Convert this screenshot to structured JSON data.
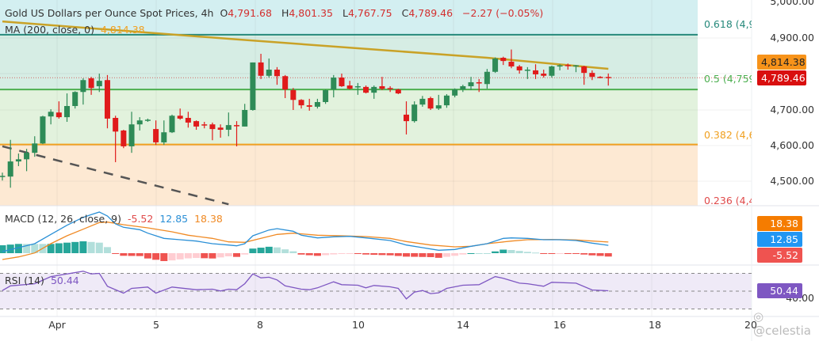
{
  "header": {
    "title": "Gold US Dollars per Ounce Spot Prices, 4h",
    "o_label": "O",
    "o_value": "4,791.68",
    "h_label": "H",
    "h_value": "4,801.35",
    "l_label": "L",
    "l_value": "4,767.75",
    "c_label": "C",
    "c_value": "4,789.46",
    "change": "−2.27 (−0.05%)"
  },
  "ma_legend": {
    "label": "MA (200, close, 0)",
    "value": "4,814.38"
  },
  "macd_legend": {
    "label": "MACD (12, 26, close, 9)",
    "hist": "-5.52",
    "macd": "12.85",
    "signal": "18.38"
  },
  "rsi_legend": {
    "label": "RSI (14)",
    "value": "50.44"
  },
  "price_axis": [
    "5,000.00",
    "4,900.00",
    "4,700.00",
    "4,600.00",
    "4,500.00"
  ],
  "price_badges": {
    "ma": "4,814.38",
    "last": "4,789.46"
  },
  "macd_badges": {
    "signal": "18.38",
    "macd": "12.85",
    "hist": "-5.52"
  },
  "rsi_axis": {
    "badge": "50.44",
    "label": "40.00"
  },
  "fib_levels": [
    {
      "ratio": 0.618,
      "price": 4909,
      "label": "0.618 (4,9",
      "color": "#26897b"
    },
    {
      "ratio": 0.5,
      "price": 4757,
      "label": "0.5 (4,759",
      "color": "#4caf50"
    },
    {
      "ratio": 0.382,
      "price": 4604,
      "label": "0.382 (4,6(",
      "color": "#f0a020"
    },
    {
      "ratio": 0.236,
      "price": 4440,
      "label": "0.236 (4,4",
      "color": "#e04a4a"
    }
  ],
  "dates": [
    "Apr",
    "5",
    "8",
    "10",
    "14",
    "16",
    "18",
    "20"
  ],
  "watermark": "@celestia",
  "colors": {
    "up": "#2e8b57",
    "down": "#e01b1b",
    "ma": "#c9a227",
    "macd": "#2a8fd6",
    "signal": "#f08a24",
    "rsi": "#7e57c2"
  },
  "chart_data": {
    "type": "candlestick",
    "timeframe": "4h",
    "ohlc": [
      [
        4515,
        4526,
        4504,
        4517
      ],
      [
        4515,
        4617,
        4484,
        4557
      ],
      [
        4557,
        4579,
        4544,
        4563
      ],
      [
        4563,
        4592,
        4530,
        4581
      ],
      [
        4581,
        4627,
        4570,
        4607
      ],
      [
        4607,
        4684,
        4605,
        4682
      ],
      [
        4682,
        4702,
        4660,
        4695
      ],
      [
        4693,
        4724,
        4676,
        4680
      ],
      [
        4680,
        4746,
        4667,
        4711
      ],
      [
        4711,
        4752,
        4704,
        4750
      ],
      [
        4750,
        4788,
        4715,
        4783
      ],
      [
        4788,
        4792,
        4742,
        4761
      ],
      [
        4766,
        4801,
        4750,
        4781
      ],
      [
        4783,
        4797,
        4649,
        4676
      ],
      [
        4678,
        4684,
        4555,
        4640
      ],
      [
        4643,
        4645,
        4594,
        4599
      ],
      [
        4599,
        4695,
        4581,
        4660
      ],
      [
        4660,
        4680,
        4643,
        4671
      ],
      [
        4671,
        4676,
        4667,
        4673
      ],
      [
        4647,
        4671,
        4603,
        4610
      ],
      [
        4610,
        4671,
        4603,
        4638
      ],
      [
        4638,
        4687,
        4636,
        4684
      ],
      [
        4684,
        4704,
        4673,
        4676
      ],
      [
        4678,
        4695,
        4651,
        4665
      ],
      [
        4669,
        4671,
        4645,
        4654
      ],
      [
        4660,
        4667,
        4649,
        4658
      ],
      [
        4660,
        4665,
        4616,
        4647
      ],
      [
        4651,
        4660,
        4623,
        4645
      ],
      [
        4645,
        4693,
        4627,
        4658
      ],
      [
        4658,
        4669,
        4599,
        4656
      ],
      [
        4654,
        4717,
        4654,
        4700
      ],
      [
        4700,
        4832,
        4698,
        4832
      ],
      [
        4832,
        4856,
        4786,
        4795
      ],
      [
        4795,
        4843,
        4790,
        4812
      ],
      [
        4812,
        4819,
        4770,
        4794
      ],
      [
        4794,
        4797,
        4733,
        4757
      ],
      [
        4755,
        4761,
        4700,
        4728
      ],
      [
        4728,
        4730,
        4704,
        4713
      ],
      [
        4713,
        4731,
        4698,
        4709
      ],
      [
        4709,
        4731,
        4704,
        4722
      ],
      [
        4722,
        4757,
        4717,
        4755
      ],
      [
        4757,
        4797,
        4735,
        4790
      ],
      [
        4790,
        4801,
        4764,
        4766
      ],
      [
        4768,
        4781,
        4757,
        4759
      ],
      [
        4764,
        4775,
        4742,
        4766
      ],
      [
        4764,
        4768,
        4746,
        4748
      ],
      [
        4748,
        4768,
        4731,
        4764
      ],
      [
        4766,
        4792,
        4755,
        4759
      ],
      [
        4761,
        4766,
        4750,
        4759
      ],
      [
        4757,
        4759,
        4744,
        4746
      ],
      [
        4687,
        4724,
        4632,
        4669
      ],
      [
        4669,
        4724,
        4665,
        4715
      ],
      [
        4715,
        4739,
        4709,
        4731
      ],
      [
        4733,
        4737,
        4700,
        4704
      ],
      [
        4704,
        4742,
        4700,
        4713
      ],
      [
        4713,
        4744,
        4706,
        4740
      ],
      [
        4740,
        4760,
        4735,
        4757
      ],
      [
        4757,
        4770,
        4750,
        4766
      ],
      [
        4766,
        4792,
        4755,
        4777
      ],
      [
        4777,
        4786,
        4750,
        4775
      ],
      [
        4772,
        4814,
        4759,
        4806
      ],
      [
        4806,
        4846,
        4803,
        4843
      ],
      [
        4845,
        4848,
        4825,
        4836
      ],
      [
        4834,
        4868,
        4816,
        4821
      ],
      [
        4821,
        4825,
        4801,
        4810
      ],
      [
        4811,
        4819,
        4786,
        4812
      ],
      [
        4810,
        4827,
        4786,
        4799
      ],
      [
        4801,
        4812,
        4790,
        4795
      ],
      [
        4795,
        4823,
        4790,
        4821
      ],
      [
        4823,
        4827,
        4810,
        4824
      ],
      [
        4825,
        4829,
        4812,
        4823
      ],
      [
        4823,
        4825,
        4805,
        4824
      ],
      [
        4821,
        4823,
        4770,
        4803
      ],
      [
        4803,
        4810,
        4783,
        4792
      ],
      [
        4792,
        4794,
        4788,
        4791
      ],
      [
        4791.68,
        4801.35,
        4767.75,
        4789.46
      ]
    ],
    "ma200": [
      [
        0,
        4946
      ],
      [
        29,
        4896
      ],
      [
        60,
        4845
      ],
      [
        75,
        4814.38
      ]
    ],
    "trendline": [
      [
        0,
        4599
      ],
      [
        28,
        4438
      ]
    ],
    "last_price": 4789.46,
    "price_range": [
      4460,
      5005
    ],
    "macd": {
      "macd": [
        [
          0,
          2.6
        ],
        [
          2,
          9.1
        ],
        [
          4,
          15.6
        ],
        [
          6,
          30.8
        ],
        [
          8,
          45.9
        ],
        [
          10,
          58.9
        ],
        [
          11,
          63.3
        ],
        [
          12,
          67.6
        ],
        [
          13,
          61.1
        ],
        [
          14,
          48.1
        ],
        [
          15,
          42.5
        ],
        [
          17,
          38.6
        ],
        [
          18,
          32.9
        ],
        [
          20,
          24.3
        ],
        [
          22,
          22.1
        ],
        [
          24,
          19.9
        ],
        [
          26,
          15.6
        ],
        [
          28,
          13.4
        ],
        [
          29,
          12.1
        ],
        [
          30,
          15.6
        ],
        [
          31,
          28.6
        ],
        [
          33,
          38.1
        ],
        [
          34,
          40.3
        ],
        [
          36,
          36
        ],
        [
          37,
          29.5
        ],
        [
          39,
          25.1
        ],
        [
          41,
          26.9
        ],
        [
          43,
          27.7
        ],
        [
          45,
          25.1
        ],
        [
          48,
          20.8
        ],
        [
          50,
          13.4
        ],
        [
          52,
          9.1
        ],
        [
          54,
          4.8
        ],
        [
          56,
          6.1
        ],
        [
          58,
          11.3
        ],
        [
          60,
          15.6
        ],
        [
          62,
          24.3
        ],
        [
          63,
          25.1
        ],
        [
          65,
          24.3
        ],
        [
          67,
          22.1
        ],
        [
          69,
          22.1
        ],
        [
          71,
          20.8
        ],
        [
          73,
          16.5
        ],
        [
          75,
          12.85
        ]
      ],
      "signal": [
        [
          0,
          -10.4
        ],
        [
          2,
          -6.1
        ],
        [
          4,
          0.4
        ],
        [
          6,
          15.6
        ],
        [
          8,
          28.6
        ],
        [
          10,
          39.4
        ],
        [
          12,
          50.3
        ],
        [
          13,
          51.1
        ],
        [
          15,
          46.8
        ],
        [
          18,
          41.6
        ],
        [
          21,
          35.1
        ],
        [
          23,
          29.5
        ],
        [
          26,
          24.3
        ],
        [
          28,
          18.6
        ],
        [
          30,
          17.8
        ],
        [
          32,
          24.3
        ],
        [
          34,
          30.8
        ],
        [
          36,
          32.9
        ],
        [
          39,
          29.5
        ],
        [
          42,
          28.6
        ],
        [
          45,
          27.3
        ],
        [
          48,
          24.3
        ],
        [
          50,
          19.1
        ],
        [
          53,
          13.4
        ],
        [
          56,
          10.4
        ],
        [
          58,
          11.3
        ],
        [
          60,
          15.6
        ],
        [
          63,
          19.9
        ],
        [
          65,
          22.1
        ],
        [
          68,
          22.5
        ],
        [
          71,
          21.7
        ],
        [
          75,
          18.38
        ]
      ]
    },
    "rsi": {
      "levels": [
        70,
        50,
        30
      ],
      "values": [
        [
          0,
          50.7
        ],
        [
          1,
          56
        ],
        [
          4,
          58.4
        ],
        [
          6,
          66.4
        ],
        [
          10,
          72.4
        ],
        [
          11,
          69.4
        ],
        [
          12,
          70
        ],
        [
          13,
          55.5
        ],
        [
          15,
          47.8
        ],
        [
          16,
          53.1
        ],
        [
          18,
          54.6
        ],
        [
          19,
          47.8
        ],
        [
          21,
          54.6
        ],
        [
          24,
          51.6
        ],
        [
          26,
          52.2
        ],
        [
          27,
          50.2
        ],
        [
          28,
          52.2
        ],
        [
          29,
          51.6
        ],
        [
          30,
          58.4
        ],
        [
          31,
          69.4
        ],
        [
          32,
          64.9
        ],
        [
          33,
          65.6
        ],
        [
          34,
          62.6
        ],
        [
          35,
          56
        ],
        [
          37,
          52.2
        ],
        [
          38,
          51.6
        ],
        [
          39,
          53.7
        ],
        [
          41,
          60.5
        ],
        [
          42,
          57.3
        ],
        [
          44,
          56.7
        ],
        [
          45,
          53.7
        ],
        [
          46,
          56.4
        ],
        [
          48,
          54.9
        ],
        [
          49,
          53.1
        ],
        [
          50,
          41.3
        ],
        [
          51,
          48.9
        ],
        [
          52,
          50.7
        ],
        [
          53,
          47.2
        ],
        [
          54,
          48.1
        ],
        [
          55,
          53.1
        ],
        [
          57,
          56.7
        ],
        [
          59,
          57.3
        ],
        [
          61,
          66.4
        ],
        [
          62,
          64.4
        ],
        [
          64,
          59
        ],
        [
          65,
          58.4
        ],
        [
          67,
          55.5
        ],
        [
          68,
          60
        ],
        [
          71,
          59
        ],
        [
          73,
          51.3
        ],
        [
          75,
          50.44
        ]
      ]
    }
  }
}
